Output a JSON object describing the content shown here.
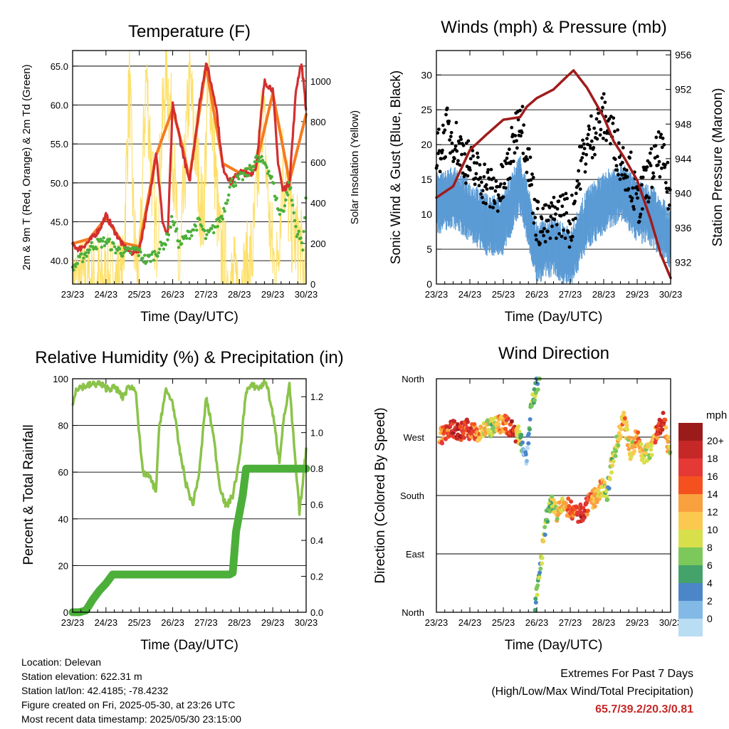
{
  "x_ticks": [
    "23/23",
    "24/23",
    "25/23",
    "26/23",
    "27/23",
    "28/23",
    "29/23",
    "30/23"
  ],
  "x_label": "Time (Day/UTC)",
  "panels": {
    "temperature": {
      "title": "Temperature (F)",
      "ylabel_left": "2m & 9m T (Red, Orange) & 2m Td (Green)",
      "ylabel_right": "Solar Insolation (Yellow)",
      "left_ticks": [
        "40.0",
        "45.0",
        "50.0",
        "55.0",
        "60.0",
        "65.0"
      ],
      "right_ticks": [
        "0",
        "200",
        "400",
        "600",
        "800",
        "1000"
      ]
    },
    "winds": {
      "title": "Winds (mph) & Pressure (mb)",
      "ylabel_left": "Sonic Wind & Gust (Blue, Black)",
      "ylabel_right": "Station Pressure (Maroon)",
      "left_ticks": [
        "0",
        "5",
        "10",
        "15",
        "20",
        "25",
        "30"
      ],
      "right_ticks": [
        "932",
        "936",
        "940",
        "944",
        "948",
        "952",
        "956"
      ]
    },
    "humidity": {
      "title": "Relative Humidity (%) & Precipitation (in)",
      "ylabel_left": "Percent & Total Rainfall",
      "left_ticks": [
        "0",
        "20",
        "40",
        "60",
        "80",
        "100"
      ],
      "right_ticks": [
        "0.0",
        "0.2",
        "0.4",
        "0.6",
        "0.8",
        "1.0",
        "1.2"
      ]
    },
    "direction": {
      "title": "Wind Direction",
      "ylabel_left": "Direction (Colored By Speed)",
      "left_ticks": [
        "North",
        "East",
        "South",
        "West",
        "North"
      ],
      "legend_title": "mph",
      "legend_labels": [
        "20+",
        "18",
        "16",
        "14",
        "12",
        "10",
        "8",
        "6",
        "4",
        "2",
        "0"
      ]
    }
  },
  "colors": {
    "temp_2m": "#d32f2f",
    "temp_9m": "#f57c20",
    "dewpoint": "#4caf3a",
    "solar": "#fde06a",
    "wind": "#5b9bd5",
    "gust": "#000000",
    "pressure": "#a01c1c",
    "rh": "#8bc34a",
    "precip": "#4caf3a",
    "speed_scale": [
      "#9b1b1b",
      "#c62828",
      "#e53935",
      "#f4511e",
      "#f9a03f",
      "#fbc94f",
      "#d7e04b",
      "#7cc85a",
      "#43a36a",
      "#4a86c8",
      "#82b9e6",
      "#b9ddf3"
    ]
  },
  "chart_data": [
    {
      "type": "line",
      "title": "Temperature (F)",
      "xlabel": "Time (Day/UTC)",
      "ylabel": "2m & 9m T (Red, Orange) & 2m Td (Green)",
      "y2label": "Solar Insolation (Yellow)",
      "x_unit": "days since 23/23",
      "ylim": [
        37,
        67
      ],
      "y2lim": [
        0,
        1150
      ],
      "series": [
        {
          "name": "2m T",
          "axis": "left",
          "x": [
            0,
            0.2,
            0.5,
            0.8,
            1.0,
            1.3,
            1.5,
            1.75,
            2.0,
            2.3,
            2.5,
            2.7,
            2.85,
            3.0,
            3.3,
            3.5,
            3.8,
            4.0,
            4.3,
            4.5,
            4.75,
            5.0,
            5.3,
            5.5,
            5.75,
            6.0,
            6.15,
            6.3,
            6.5,
            6.7,
            6.85,
            6.95,
            7.0
          ],
          "y": [
            42.0,
            41.5,
            42.5,
            44.0,
            45.8,
            43.5,
            42.0,
            41.0,
            41.5,
            48.0,
            54.0,
            45.0,
            43.0,
            60.0,
            54.0,
            50.0,
            60.0,
            65.5,
            60.0,
            52.0,
            50.0,
            51.5,
            51.0,
            52.0,
            63.0,
            62.0,
            53.0,
            49.0,
            50.0,
            62.0,
            65.5,
            62.0,
            59.0
          ]
        },
        {
          "name": "9m T",
          "axis": "left",
          "x": [
            0,
            0.5,
            1.0,
            1.5,
            2.0,
            2.5,
            3.0,
            3.3,
            3.5,
            4.0,
            4.5,
            5.0,
            5.5,
            6.0,
            6.5,
            7.0
          ],
          "y": [
            42.2,
            42.8,
            45.5,
            42.3,
            41.8,
            53.5,
            59.5,
            54.5,
            50.5,
            65.0,
            52.5,
            51.3,
            52.3,
            61.5,
            50.2,
            58.8
          ]
        },
        {
          "name": "2m Td",
          "axis": "left",
          "x": [
            0,
            0.3,
            0.6,
            1.0,
            1.3,
            1.6,
            1.9,
            2.2,
            2.5,
            2.8,
            3.0,
            3.2,
            3.5,
            3.8,
            4.0,
            4.3,
            4.5,
            4.75,
            5.0,
            5.3,
            5.5,
            5.8,
            6.0,
            6.2,
            6.35,
            6.5,
            6.7,
            6.9,
            7.0
          ],
          "y": [
            39.0,
            40.5,
            42.0,
            42.5,
            41.5,
            41.0,
            41.5,
            40.0,
            41.0,
            42.5,
            45.5,
            42.0,
            43.5,
            45.0,
            43.0,
            44.5,
            46.0,
            50.0,
            50.5,
            51.5,
            53.0,
            52.5,
            50.0,
            46.0,
            47.0,
            50.0,
            44.0,
            42.0,
            48.0
          ]
        },
        {
          "name": "Solar Insolation",
          "axis": "right",
          "x": [
            0,
            1.5,
            1.7,
            1.85,
            2.0,
            2.2,
            2.5,
            2.8,
            3.0,
            3.2,
            3.5,
            3.9,
            4.1,
            4.4,
            4.7,
            5.1,
            5.4,
            5.7,
            5.9,
            6.1,
            6.3,
            6.6,
            6.8,
            6.95,
            7.0
          ],
          "y": [
            0,
            0,
            1000,
            200,
            0,
            1050,
            200,
            1100,
            700,
            0,
            1000,
            300,
            1050,
            200,
            0,
            0,
            150,
            900,
            300,
            0,
            600,
            250,
            200,
            0,
            0
          ]
        }
      ]
    },
    {
      "type": "line",
      "title": "Winds (mph) & Pressure (mb)",
      "xlabel": "Time (Day/UTC)",
      "ylabel": "Sonic Wind & Gust (Blue, Black)",
      "y2label": "Station Pressure (Maroon)",
      "x_unit": "days since 23/23",
      "ylim": [
        0,
        33.5
      ],
      "y2lim": [
        929.5,
        956.5
      ],
      "series": [
        {
          "name": "Sonic Wind",
          "axis": "left",
          "x": [
            0,
            0.5,
            1.0,
            1.5,
            2.0,
            2.5,
            3.0,
            3.5,
            4.0,
            4.5,
            5.0,
            5.5,
            6.0,
            6.5,
            7.0
          ],
          "y": [
            13,
            14,
            12,
            10,
            10,
            16,
            6,
            7,
            5,
            11,
            13,
            15,
            12,
            11,
            8
          ]
        },
        {
          "name": "Gust",
          "axis": "left",
          "x": [
            0,
            0.3,
            0.5,
            1.0,
            1.4,
            1.7,
            2.0,
            2.3,
            2.5,
            2.8,
            3.0,
            3.3,
            3.6,
            3.9,
            4.0,
            4.3,
            4.6,
            5.0,
            5.2,
            5.5,
            5.8,
            6.0,
            6.4,
            6.7,
            7.0
          ],
          "y": [
            18,
            22,
            21,
            17,
            15,
            13,
            14,
            20,
            25,
            16,
            9,
            8,
            10,
            10,
            8,
            17,
            21,
            24,
            22,
            18,
            16,
            11,
            16,
            19,
            12
          ]
        },
        {
          "name": "Station Pressure",
          "axis": "right",
          "x": [
            0,
            0.5,
            1.0,
            1.5,
            2.0,
            2.5,
            2.7,
            3.0,
            3.5,
            3.9,
            4.1,
            4.5,
            5.0,
            5.3,
            5.6,
            6.0,
            6.4,
            6.7,
            7.0
          ],
          "y": [
            939.5,
            940.8,
            945.0,
            946.8,
            948.5,
            948.8,
            950.0,
            951.0,
            952.0,
            953.5,
            954.2,
            952.2,
            948.8,
            946.0,
            944.2,
            941.5,
            937.0,
            933.0,
            930.2
          ]
        }
      ]
    },
    {
      "type": "line",
      "title": "Relative Humidity (%) & Precipitation (in)",
      "xlabel": "Time (Day/UTC)",
      "ylabel": "Percent & Total Rainfall",
      "x_unit": "days since 23/23",
      "ylim": [
        0,
        100
      ],
      "y2lim": [
        0,
        1.3
      ],
      "series": [
        {
          "name": "Relative Humidity",
          "axis": "left",
          "x": [
            0,
            0.1,
            0.4,
            0.8,
            1.0,
            1.3,
            1.5,
            1.7,
            1.9,
            2.0,
            2.1,
            2.3,
            2.5,
            2.6,
            2.8,
            3.0,
            3.2,
            3.4,
            3.6,
            3.8,
            4.0,
            4.2,
            4.4,
            4.6,
            4.8,
            5.0,
            5.2,
            5.4,
            5.6,
            5.8,
            6.0,
            6.2,
            6.3,
            6.5,
            6.7,
            6.8,
            6.9,
            7.0
          ],
          "y": [
            88,
            96,
            97,
            98,
            96,
            96,
            92,
            97,
            95,
            75,
            60,
            58,
            52,
            80,
            95,
            90,
            70,
            55,
            46,
            60,
            92,
            78,
            55,
            45,
            50,
            65,
            95,
            97,
            96,
            99,
            85,
            65,
            80,
            97,
            60,
            43,
            55,
            70
          ]
        },
        {
          "name": "Total Precipitation",
          "axis": "right",
          "x": [
            0,
            0.2,
            0.4,
            0.6,
            0.8,
            1.0,
            1.2,
            2.0,
            3.0,
            4.0,
            4.5,
            4.7,
            4.8,
            4.9,
            5.0,
            5.1,
            5.2,
            6.0,
            7.0
          ],
          "y": [
            0,
            0,
            0.01,
            0.07,
            0.12,
            0.16,
            0.21,
            0.21,
            0.21,
            0.21,
            0.21,
            0.21,
            0.22,
            0.45,
            0.55,
            0.65,
            0.8,
            0.8,
            0.8
          ]
        }
      ]
    },
    {
      "type": "scatter",
      "title": "Wind Direction",
      "xlabel": "Time (Day/UTC)",
      "ylabel": "Direction (Colored By Speed)",
      "x_unit": "days since 23/23",
      "y_unit": "degrees (0 = North, 90 = East, 180 = South, 270 = West, 360 = North)",
      "color_unit": "mph",
      "points": [
        {
          "x": 0.1,
          "y": 270,
          "s": 14
        },
        {
          "x": 0.3,
          "y": 280,
          "s": 16
        },
        {
          "x": 0.5,
          "y": 282,
          "s": 18
        },
        {
          "x": 0.7,
          "y": 278,
          "s": 17
        },
        {
          "x": 0.9,
          "y": 285,
          "s": 16
        },
        {
          "x": 1.1,
          "y": 275,
          "s": 14
        },
        {
          "x": 1.3,
          "y": 280,
          "s": 12
        },
        {
          "x": 1.5,
          "y": 282,
          "s": 10
        },
        {
          "x": 1.7,
          "y": 285,
          "s": 8
        },
        {
          "x": 1.9,
          "y": 288,
          "s": 12
        },
        {
          "x": 2.1,
          "y": 290,
          "s": 15
        },
        {
          "x": 2.3,
          "y": 280,
          "s": 18
        },
        {
          "x": 2.5,
          "y": 270,
          "s": 8
        },
        {
          "x": 2.6,
          "y": 255,
          "s": 4
        },
        {
          "x": 2.7,
          "y": 240,
          "s": 2
        },
        {
          "x": 2.8,
          "y": 300,
          "s": 7
        },
        {
          "x": 2.9,
          "y": 330,
          "s": 8
        },
        {
          "x": 3.0,
          "y": 355,
          "s": 6
        },
        {
          "x": 3.1,
          "y": 360,
          "s": 5
        },
        {
          "x": 2.95,
          "y": 5,
          "s": 4
        },
        {
          "x": 3.0,
          "y": 30,
          "s": 6
        },
        {
          "x": 3.1,
          "y": 65,
          "s": 7
        },
        {
          "x": 3.2,
          "y": 110,
          "s": 8
        },
        {
          "x": 3.3,
          "y": 150,
          "s": 6
        },
        {
          "x": 3.5,
          "y": 170,
          "s": 9
        },
        {
          "x": 3.6,
          "y": 150,
          "s": 10
        },
        {
          "x": 3.8,
          "y": 165,
          "s": 12
        },
        {
          "x": 4.0,
          "y": 160,
          "s": 14
        },
        {
          "x": 4.2,
          "y": 150,
          "s": 16
        },
        {
          "x": 4.4,
          "y": 155,
          "s": 18
        },
        {
          "x": 4.6,
          "y": 170,
          "s": 14
        },
        {
          "x": 4.8,
          "y": 180,
          "s": 11
        },
        {
          "x": 5.0,
          "y": 195,
          "s": 12
        },
        {
          "x": 5.1,
          "y": 180,
          "s": 6
        },
        {
          "x": 5.2,
          "y": 220,
          "s": 8
        },
        {
          "x": 5.4,
          "y": 260,
          "s": 10
        },
        {
          "x": 5.6,
          "y": 300,
          "s": 12
        },
        {
          "x": 5.8,
          "y": 250,
          "s": 9
        },
        {
          "x": 6.0,
          "y": 270,
          "s": 14
        },
        {
          "x": 6.2,
          "y": 240,
          "s": 10
        },
        {
          "x": 6.4,
          "y": 250,
          "s": 8
        },
        {
          "x": 6.6,
          "y": 280,
          "s": 16
        },
        {
          "x": 6.8,
          "y": 300,
          "s": 18
        },
        {
          "x": 6.9,
          "y": 260,
          "s": 12
        },
        {
          "x": 7.0,
          "y": 250,
          "s": 8
        }
      ]
    }
  ],
  "info": {
    "location": "Location: Delevan",
    "elevation": "Station elevation: 622.31 m",
    "latlon": "Station lat/lon: 42.4185; -78.4232",
    "created": "Figure created on Fri, 2025-05-30, at 23:26 UTC",
    "timestamp": "Most recent data timestamp: 2025/05/30 23:15:00"
  },
  "extremes": {
    "line1": "Extremes For Past 7 Days",
    "line2": "(High/Low/Max Wind/Total Precipitation)",
    "values": "65.7/39.2/20.3/0.81"
  }
}
